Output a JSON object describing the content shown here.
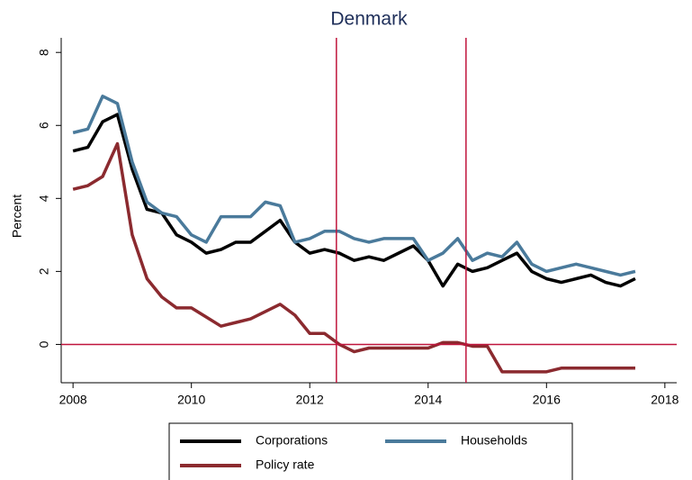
{
  "chart_data": {
    "type": "line",
    "title": "Denmark",
    "ylabel": "Percent",
    "x": [
      2008.0,
      2008.25,
      2008.5,
      2008.75,
      2009.0,
      2009.25,
      2009.5,
      2009.75,
      2010.0,
      2010.25,
      2010.5,
      2010.75,
      2011.0,
      2011.25,
      2011.5,
      2011.75,
      2012.0,
      2012.25,
      2012.5,
      2012.75,
      2013.0,
      2013.25,
      2013.5,
      2013.75,
      2014.0,
      2014.25,
      2014.5,
      2014.75,
      2015.0,
      2015.25,
      2015.5,
      2015.75,
      2016.0,
      2016.25,
      2016.5,
      2016.75,
      2017.0,
      2017.25,
      2017.5
    ],
    "series": [
      {
        "name": "Corporations",
        "color": "#000000",
        "values": [
          5.3,
          5.4,
          6.1,
          6.3,
          4.8,
          3.7,
          3.6,
          3.0,
          2.8,
          2.5,
          2.6,
          2.8,
          2.8,
          3.1,
          3.4,
          2.8,
          2.5,
          2.6,
          2.5,
          2.3,
          2.4,
          2.3,
          2.5,
          2.7,
          2.3,
          1.6,
          2.2,
          2.0,
          2.1,
          2.3,
          2.5,
          2.0,
          1.8,
          1.7,
          1.8,
          1.9,
          1.7,
          1.6,
          1.8
        ]
      },
      {
        "name": "Households",
        "color": "#4a7a9b",
        "values": [
          5.8,
          5.9,
          6.8,
          6.6,
          5.0,
          3.9,
          3.6,
          3.5,
          3.0,
          2.8,
          3.5,
          3.5,
          3.5,
          3.9,
          3.8,
          2.8,
          2.9,
          3.1,
          3.1,
          2.9,
          2.8,
          2.9,
          2.9,
          2.9,
          2.3,
          2.5,
          2.9,
          2.3,
          2.5,
          2.4,
          2.8,
          2.2,
          2.0,
          2.1,
          2.2,
          2.1,
          2.0,
          1.9,
          2.0
        ]
      },
      {
        "name": "Policy rate",
        "color": "#8b2a2f",
        "values": [
          4.25,
          4.35,
          4.6,
          5.5,
          3.0,
          1.8,
          1.3,
          1.0,
          1.0,
          0.75,
          0.5,
          0.6,
          0.7,
          0.9,
          1.1,
          0.8,
          0.3,
          0.3,
          0.0,
          -0.2,
          -0.1,
          -0.1,
          -0.1,
          -0.1,
          -0.1,
          0.05,
          0.05,
          -0.05,
          -0.05,
          -0.75,
          -0.75,
          -0.75,
          -0.75,
          -0.65,
          -0.65,
          -0.65,
          -0.65,
          -0.65,
          -0.65
        ]
      }
    ],
    "xlim": [
      2007.8,
      2018.2
    ],
    "xticks": [
      2008,
      2010,
      2012,
      2014,
      2016,
      2018
    ],
    "ylim": [
      -1.05,
      8.4
    ],
    "yticks": [
      0,
      2,
      4,
      6,
      8
    ],
    "vlines": [
      2012.45,
      2014.64
    ],
    "hlines": [
      0
    ],
    "refline_color": "#c0143c",
    "legend": "bottom"
  }
}
